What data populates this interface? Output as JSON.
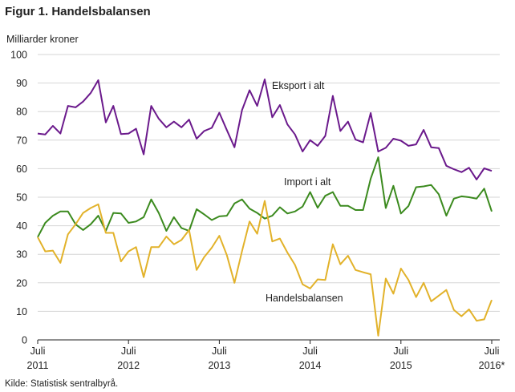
{
  "figure": {
    "title": "Figur 1. Handelsbalansen",
    "unit_label": "Milliarder  kroner",
    "source": "Kilde: Statistisk sentralbyrå."
  },
  "chart_data": {
    "type": "line",
    "title": "Figur 1. Handelsbalansen",
    "ylabel": "Milliarder  kroner",
    "xlabel": "",
    "ylim": [
      0,
      100
    ],
    "yticks": [
      0,
      10,
      20,
      30,
      40,
      50,
      60,
      70,
      80,
      90,
      100
    ],
    "x_start": "2011-07",
    "x_end": "2016-07",
    "x_ticks": [
      {
        "month": "Juli",
        "year": "2011"
      },
      {
        "month": "Juli",
        "year": "2012"
      },
      {
        "month": "Juli",
        "year": "2013"
      },
      {
        "month": "Juli",
        "year": "2014"
      },
      {
        "month": "Juli",
        "year": "2015"
      },
      {
        "month": "Juli",
        "year": "2016*"
      }
    ],
    "grid": true,
    "legend": "none",
    "series": [
      {
        "name": "Eksport i alt",
        "color": "#6b1a8c",
        "values": [
          72.3,
          72,
          75,
          72.3,
          82,
          81.5,
          83.5,
          86.5,
          91,
          76.2,
          82,
          72.1,
          72.3,
          74,
          65,
          82,
          77.5,
          74.5,
          76.5,
          74.5,
          77.2,
          70.5,
          73.2,
          74.3,
          79.6,
          73.5,
          67.5,
          80.5,
          87.5,
          82,
          91.3,
          78,
          82.3,
          75.5,
          72,
          66,
          70,
          68,
          71.5,
          85.5,
          73.2,
          76.5,
          70.2,
          69.2,
          79.5,
          66,
          67.3,
          70.5,
          69.8,
          68,
          68.5,
          73.6,
          67.5,
          67.2,
          61,
          59.8,
          58.8,
          60.3,
          56.2,
          60.1,
          59.2
        ]
      },
      {
        "name": "Import i alt",
        "color": "#3b8a1e",
        "values": [
          36,
          41,
          43.5,
          45,
          45,
          40.5,
          38.5,
          40.5,
          43.5,
          38.2,
          44.5,
          44.3,
          41,
          41.5,
          43,
          49.2,
          44.5,
          38.2,
          43,
          39.2,
          38.2,
          45.8,
          44,
          42,
          43.3,
          43.5,
          47.8,
          49.2,
          46,
          44.5,
          42.5,
          43.5,
          46.5,
          44.3,
          45,
          46.7,
          51.8,
          46.3,
          50.5,
          51.8,
          47,
          47,
          45.5,
          45.5,
          56.5,
          64,
          46.2,
          54,
          44.3,
          46.9,
          53.5,
          53.8,
          54.3,
          51,
          43.5,
          49.5,
          50.3,
          50,
          49.5,
          53,
          45
        ]
      },
      {
        "name": "Handelsbalansen",
        "color": "#e2b22a",
        "values": [
          36,
          31,
          31.3,
          27,
          37,
          40.5,
          44.5,
          46.2,
          47.5,
          37.5,
          37.5,
          27.5,
          31,
          32.5,
          22,
          32.5,
          32.5,
          36.2,
          33.5,
          35,
          38.5,
          24.5,
          29,
          32.3,
          36.5,
          29.7,
          20,
          31.1,
          41.5,
          37.2,
          48.7,
          34.5,
          35.5,
          30.6,
          26.3,
          19.5,
          18,
          21.2,
          21,
          33.5,
          26.5,
          29.5,
          24.5,
          23.7,
          23,
          1.5,
          21.5,
          16.2,
          25,
          21,
          15,
          20,
          13.5,
          15.5,
          17.5,
          10.5,
          8.3,
          10.7,
          6.7,
          7.2,
          14
        ]
      }
    ],
    "annotations": [
      {
        "text": "Eksport i alt",
        "series": "Eksport i alt"
      },
      {
        "text": "Import i alt",
        "series": "Import i alt"
      },
      {
        "text": "Handelsbalansen",
        "series": "Handelsbalansen"
      }
    ]
  }
}
